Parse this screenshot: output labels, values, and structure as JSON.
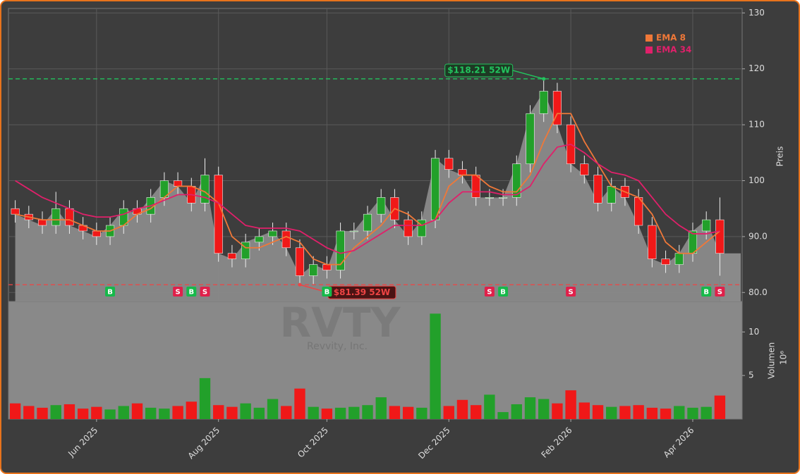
{
  "chart_data": {
    "type": "candlestick",
    "symbol": "RVTY",
    "company": "Revvity, Inc.",
    "categories": [
      null,
      null,
      null,
      null,
      null,
      null,
      "Jun 2025",
      null,
      null,
      null,
      null,
      null,
      null,
      null,
      null,
      "Aug 2025",
      null,
      null,
      null,
      null,
      null,
      null,
      null,
      "Oct 2025",
      null,
      null,
      null,
      null,
      null,
      null,
      null,
      null,
      "Dec 2025",
      null,
      null,
      null,
      null,
      null,
      null,
      null,
      null,
      "Feb 2026",
      null,
      null,
      null,
      null,
      null,
      null,
      null,
      null,
      "Apr 2026",
      null,
      null
    ],
    "open": [
      95,
      94,
      93,
      92,
      95,
      92,
      91,
      90,
      92,
      95,
      94,
      97,
      100,
      99,
      96,
      101,
      87,
      86,
      89,
      90,
      91,
      88,
      83,
      85,
      84,
      91,
      91,
      94,
      97,
      93,
      90,
      93,
      104,
      102,
      101,
      97,
      97,
      97,
      103,
      112,
      116,
      110,
      103,
      101,
      96,
      99,
      97,
      92,
      86,
      85,
      87,
      91,
      93
    ],
    "high": [
      96.5,
      95.5,
      94.5,
      98,
      96.5,
      93.5,
      92.5,
      93.5,
      96.5,
      96.5,
      98.5,
      101.5,
      101.5,
      100.5,
      104,
      102.5,
      88.5,
      90.5,
      91.5,
      92.5,
      92.5,
      89.5,
      86.5,
      86.5,
      92.5,
      92.5,
      95.5,
      98.5,
      98.5,
      94.5,
      94.5,
      105.5,
      105.5,
      103.5,
      102.5,
      98.5,
      98.5,
      104.5,
      113.5,
      118.21,
      117.5,
      111.5,
      104.5,
      102.5,
      100.5,
      100.5,
      98.5,
      93.5,
      87.5,
      88.5,
      92.5,
      94.5,
      97
    ],
    "low": [
      92.5,
      91.5,
      90.5,
      90.5,
      90.5,
      89.5,
      88.5,
      88.5,
      90.5,
      92.5,
      92.5,
      95.5,
      97.5,
      94.5,
      94.5,
      85.5,
      84.5,
      84.5,
      87.5,
      88.5,
      86.5,
      81.39,
      81.5,
      82.5,
      82.5,
      89.5,
      89.5,
      92.5,
      91.5,
      88.5,
      88.5,
      91.5,
      100.5,
      99.5,
      95.5,
      95.5,
      95.5,
      95.5,
      101.5,
      110.5,
      108.5,
      101.5,
      99.5,
      94.5,
      94.5,
      95.5,
      90.5,
      84.5,
      83.5,
      83.5,
      85.5,
      89.5,
      83
    ],
    "close": [
      94,
      93,
      92,
      95,
      92,
      91,
      90,
      92,
      95,
      94,
      97,
      100,
      99,
      96,
      101,
      87,
      86,
      89,
      90,
      91,
      88,
      83,
      85,
      84,
      91,
      91,
      94,
      97,
      93,
      90,
      93,
      104,
      102,
      101,
      97,
      97,
      97,
      103,
      112,
      116,
      110,
      103,
      101,
      96,
      99,
      97,
      92,
      86,
      85,
      87,
      91,
      93,
      87
    ],
    "series": [
      {
        "name": "EMA 8",
        "color": "#f07838",
        "values": [
          94,
          93.5,
          93,
          93,
          93,
          92,
          91,
          91,
          92,
          94,
          95,
          97,
          99,
          99,
          98,
          96,
          90,
          88,
          88,
          89,
          90,
          89,
          86,
          85,
          85,
          88,
          90,
          92,
          95,
          94,
          92,
          93,
          99,
          101,
          101,
          99,
          98,
          98,
          101,
          107,
          112,
          112,
          107,
          103,
          99,
          98,
          97,
          94,
          89,
          87,
          87,
          89,
          91
        ]
      },
      {
        "name": "EMA 34",
        "color": "#e0206a",
        "values": [
          100,
          98.5,
          97,
          96,
          95,
          94,
          93.5,
          93.5,
          94,
          95,
          95.5,
          96.5,
          97.5,
          97.5,
          97,
          96,
          94,
          92,
          91.5,
          91.5,
          91.5,
          91,
          89.5,
          88,
          87,
          87.5,
          89,
          90.5,
          92,
          92,
          92,
          93,
          96,
          98,
          98,
          98,
          97.5,
          97.5,
          99,
          103,
          106,
          106.5,
          105,
          103,
          101.5,
          101,
          100,
          97,
          94,
          92,
          90.5,
          90.5,
          91
        ]
      }
    ],
    "up_color": "#22a02a",
    "down_color": "#f01818",
    "ylim": [
      78.4,
      130.8
    ],
    "yticks": [
      {
        "value": 80,
        "label": "80.0"
      },
      {
        "value": 90,
        "label": "90.0"
      },
      100,
      110,
      120,
      130
    ],
    "ylabel": "Preis",
    "grid": true,
    "legend": "upper right",
    "annotations": [
      {
        "label": "$118.21 52W",
        "value": 118.21,
        "index": 39,
        "color": "#22c55e"
      },
      {
        "label": "$81.39 52W",
        "value": 81.39,
        "index": 21,
        "color": "#ef4444"
      }
    ],
    "signals": [
      {
        "index": 7,
        "label": "B"
      },
      {
        "index": 12,
        "label": "S"
      },
      {
        "index": 13,
        "label": "B"
      },
      {
        "index": 14,
        "label": "S"
      },
      {
        "index": 23,
        "label": "B"
      },
      {
        "index": 35,
        "label": "S"
      },
      {
        "index": 36,
        "label": "B"
      },
      {
        "index": 41,
        "label": "S"
      },
      {
        "index": 51,
        "label": "B"
      },
      {
        "index": 52,
        "label": "S"
      }
    ],
    "volume": {
      "label": "Volumen",
      "unit": "10⁶",
      "values": [
        1.8,
        1.5,
        1.3,
        1.6,
        1.7,
        1.2,
        1.4,
        1.1,
        1.5,
        1.8,
        1.3,
        1.2,
        1.5,
        2,
        4.7,
        1.6,
        1.4,
        1.8,
        1.3,
        2.3,
        1.5,
        3.5,
        1.4,
        1.2,
        1.3,
        1.4,
        1.6,
        2.5,
        1.5,
        1.4,
        1.3,
        12.1,
        1.5,
        2.2,
        1.6,
        2.8,
        0.8,
        1.7,
        2.5,
        2.3,
        1.8,
        3.3,
        1.9,
        1.6,
        1.4,
        1.5,
        1.6,
        1.3,
        1.2,
        1.5,
        1.3,
        1.4,
        2.7
      ],
      "ylim": [
        0,
        13.5
      ],
      "yticks": [
        5,
        10
      ]
    }
  }
}
